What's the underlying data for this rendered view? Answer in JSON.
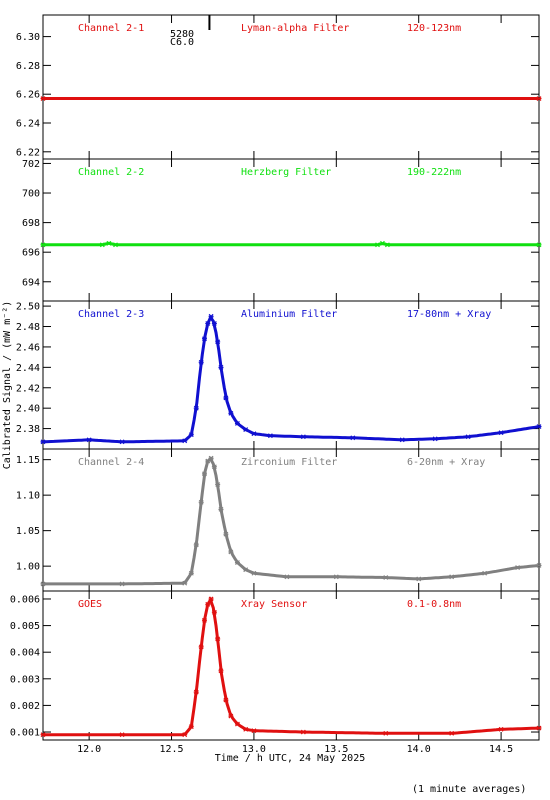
{
  "figure": {
    "ylabel": "Calibrated Signal / (mW m⁻²)",
    "xlabel": "Time / h UTC, 24 May 2025",
    "footnote": "(1 minute averages)",
    "flare_marker": {
      "x": 12.73,
      "labels": [
        "5280",
        "C6.0"
      ]
    }
  },
  "colors": {
    "red": "#e01010",
    "green": "#10e010",
    "blue": "#1010d0",
    "gray": "#808080",
    "axis": "#000000"
  },
  "chart_data": [
    {
      "type": "scatter",
      "channel_label": "Channel 2-1",
      "filter_label": "Lyman-alpha Filter",
      "band_label": "120-123nm",
      "color": "red",
      "xlim": [
        11.72,
        14.73
      ],
      "ylim": [
        6.215,
        6.315
      ],
      "ytick_values": [
        6.22,
        6.24,
        6.26,
        6.28,
        6.3
      ],
      "ytick_labels": [
        "6.22",
        "6.24",
        "6.26",
        "6.28",
        "6.30"
      ],
      "points": [
        [
          11.72,
          6.257
        ],
        [
          14.73,
          6.257
        ]
      ]
    },
    {
      "type": "scatter",
      "channel_label": "Channel 2-2",
      "filter_label": "Herzberg Filter",
      "band_label": "190-222nm",
      "color": "green",
      "xlim": [
        11.72,
        14.73
      ],
      "ylim": [
        692.7,
        702.3
      ],
      "ytick_values": [
        694,
        696,
        698,
        700,
        702
      ],
      "ytick_labels": [
        "694",
        "696",
        "698",
        "700",
        "702"
      ],
      "points": [
        [
          11.72,
          696.5
        ],
        [
          12.08,
          696.5
        ],
        [
          12.12,
          696.6
        ],
        [
          12.16,
          696.5
        ],
        [
          13.75,
          696.5
        ],
        [
          13.78,
          696.6
        ],
        [
          13.81,
          696.5
        ],
        [
          14.73,
          696.5
        ]
      ]
    },
    {
      "type": "scatter",
      "channel_label": "Channel 2-3",
      "filter_label": "Aluminium Filter",
      "band_label": "17-80nm + Xray",
      "color": "blue",
      "xlim": [
        11.72,
        14.73
      ],
      "ylim": [
        2.36,
        2.505
      ],
      "ytick_values": [
        2.38,
        2.4,
        2.42,
        2.44,
        2.46,
        2.48,
        2.5
      ],
      "ytick_labels": [
        "2.38",
        "2.40",
        "2.42",
        "2.44",
        "2.46",
        "2.48",
        "2.50"
      ],
      "points": [
        [
          11.72,
          2.367
        ],
        [
          12.0,
          2.369
        ],
        [
          12.2,
          2.367
        ],
        [
          12.58,
          2.368
        ],
        [
          12.62,
          2.374
        ],
        [
          12.65,
          2.4
        ],
        [
          12.68,
          2.445
        ],
        [
          12.7,
          2.468
        ],
        [
          12.72,
          2.483
        ],
        [
          12.74,
          2.49
        ],
        [
          12.76,
          2.483
        ],
        [
          12.78,
          2.465
        ],
        [
          12.8,
          2.44
        ],
        [
          12.83,
          2.41
        ],
        [
          12.86,
          2.395
        ],
        [
          12.9,
          2.385
        ],
        [
          12.95,
          2.379
        ],
        [
          13.0,
          2.375
        ],
        [
          13.1,
          2.373
        ],
        [
          13.3,
          2.372
        ],
        [
          13.6,
          2.371
        ],
        [
          13.9,
          2.369
        ],
        [
          14.1,
          2.37
        ],
        [
          14.3,
          2.372
        ],
        [
          14.5,
          2.376
        ],
        [
          14.73,
          2.382
        ]
      ]
    },
    {
      "type": "scatter",
      "channel_label": "Channel 2-4",
      "filter_label": "Zirconium Filter",
      "band_label": "6-20nm + Xray",
      "color": "gray",
      "xlim": [
        11.72,
        14.73
      ],
      "ylim": [
        0.965,
        1.165
      ],
      "ytick_values": [
        1.0,
        1.05,
        1.1,
        1.15
      ],
      "ytick_labels": [
        "1.00",
        "1.05",
        "1.10",
        "1.15"
      ],
      "points": [
        [
          11.72,
          0.975
        ],
        [
          12.2,
          0.975
        ],
        [
          12.58,
          0.976
        ],
        [
          12.62,
          0.99
        ],
        [
          12.65,
          1.03
        ],
        [
          12.68,
          1.09
        ],
        [
          12.7,
          1.13
        ],
        [
          12.72,
          1.148
        ],
        [
          12.74,
          1.152
        ],
        [
          12.76,
          1.14
        ],
        [
          12.78,
          1.115
        ],
        [
          12.8,
          1.08
        ],
        [
          12.83,
          1.045
        ],
        [
          12.86,
          1.02
        ],
        [
          12.9,
          1.005
        ],
        [
          12.95,
          0.995
        ],
        [
          13.0,
          0.99
        ],
        [
          13.2,
          0.985
        ],
        [
          13.5,
          0.985
        ],
        [
          13.8,
          0.984
        ],
        [
          14.0,
          0.982
        ],
        [
          14.2,
          0.985
        ],
        [
          14.4,
          0.99
        ],
        [
          14.6,
          0.998
        ],
        [
          14.73,
          1.001
        ]
      ]
    },
    {
      "type": "scatter",
      "channel_label": "GOES",
      "filter_label": "Xray Sensor",
      "band_label": "0.1-0.8nm",
      "color": "red",
      "xlim": [
        11.72,
        14.73
      ],
      "ylim": [
        0.0007,
        0.0063
      ],
      "ytick_values": [
        0.001,
        0.002,
        0.003,
        0.004,
        0.005,
        0.006
      ],
      "ytick_labels": [
        "0.001",
        "0.002",
        "0.003",
        "0.004",
        "0.005",
        "0.006"
      ],
      "points": [
        [
          11.72,
          0.0009
        ],
        [
          12.2,
          0.0009
        ],
        [
          12.58,
          0.0009
        ],
        [
          12.62,
          0.0012
        ],
        [
          12.65,
          0.0025
        ],
        [
          12.68,
          0.0042
        ],
        [
          12.7,
          0.0052
        ],
        [
          12.72,
          0.0058
        ],
        [
          12.74,
          0.006
        ],
        [
          12.76,
          0.0055
        ],
        [
          12.78,
          0.0045
        ],
        [
          12.8,
          0.0033
        ],
        [
          12.83,
          0.0022
        ],
        [
          12.86,
          0.0016
        ],
        [
          12.9,
          0.0013
        ],
        [
          12.95,
          0.0011
        ],
        [
          13.0,
          0.00105
        ],
        [
          13.3,
          0.001
        ],
        [
          13.8,
          0.00095
        ],
        [
          14.2,
          0.00095
        ],
        [
          14.5,
          0.0011
        ],
        [
          14.73,
          0.00115
        ]
      ]
    }
  ],
  "x_axis": {
    "tick_values": [
      12.0,
      12.5,
      13.0,
      13.5,
      14.0,
      14.5
    ],
    "tick_labels": [
      "12.0",
      "12.5",
      "13.0",
      "13.5",
      "14.0",
      "14.5"
    ]
  }
}
